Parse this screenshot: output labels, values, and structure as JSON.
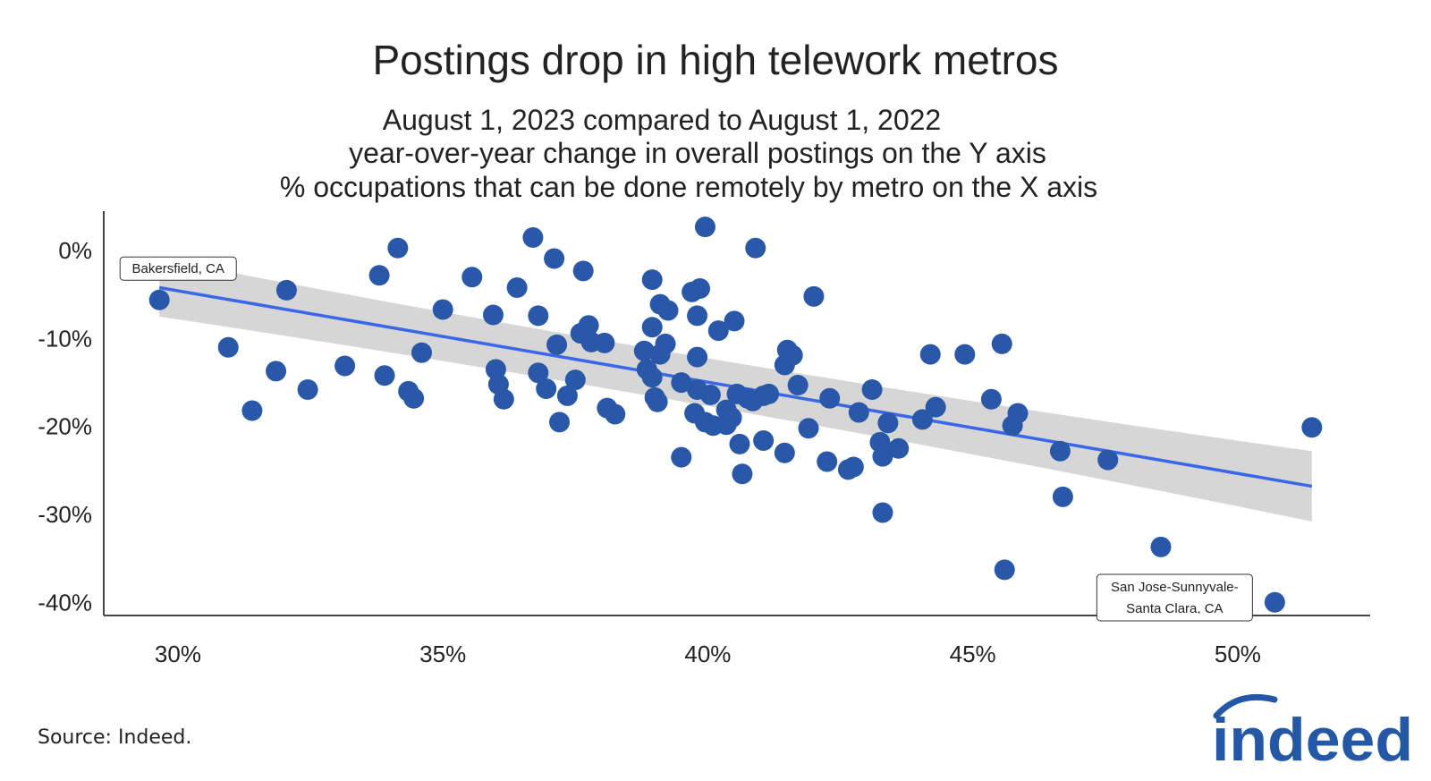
{
  "chart_data": {
    "type": "scatter",
    "title": "Postings drop in high telework metros",
    "subtitle_lines": [
      "August 1, 2023 compared to August 1, 2022",
      "year-over-year change in overall postings on the Y axis",
      "% occupations that can be done remotely by metro on the X axis"
    ],
    "xlabel": "",
    "ylabel": "",
    "xlim": [
      28.6,
      52.5
    ],
    "ylim": [
      -41.5,
      4.5
    ],
    "x_ticks": [
      30,
      35,
      40,
      45,
      50
    ],
    "x_tick_labels": [
      "30%",
      "35%",
      "40%",
      "45%",
      "50%"
    ],
    "y_ticks": [
      0,
      -10,
      -20,
      -30,
      -40
    ],
    "y_tick_labels": [
      "0%",
      "-10%",
      "-20%",
      "-30%",
      "-40%"
    ],
    "grid": false,
    "trend": {
      "x1": 29.65,
      "y1": -4.2,
      "x2": 51.4,
      "y2": -26.8,
      "band_half_width_start": 3.3,
      "band_half_width_end": 4.0
    },
    "annotations": [
      {
        "label": "Bakersfield, CA",
        "x": 29.65,
        "y": -5.6
      },
      {
        "label_lines": [
          "San Jose-Sunnyvale-",
          "Santa Clara, CA"
        ],
        "x": 50.7,
        "y": -40.0
      }
    ],
    "points": [
      [
        29.65,
        -5.6
      ],
      [
        30.95,
        -11.0
      ],
      [
        31.4,
        -18.2
      ],
      [
        31.85,
        -13.7
      ],
      [
        32.05,
        -4.5
      ],
      [
        32.45,
        -15.8
      ],
      [
        33.15,
        -13.1
      ],
      [
        33.8,
        -2.8
      ],
      [
        34.15,
        0.3
      ],
      [
        33.9,
        -14.2
      ],
      [
        34.35,
        -16.0
      ],
      [
        34.45,
        -16.8
      ],
      [
        34.6,
        -11.6
      ],
      [
        35.0,
        -6.7
      ],
      [
        35.55,
        -3.0
      ],
      [
        35.95,
        -7.3
      ],
      [
        36.0,
        -13.5
      ],
      [
        36.05,
        -15.2
      ],
      [
        36.15,
        -16.9
      ],
      [
        36.4,
        -4.2
      ],
      [
        36.7,
        1.5
      ],
      [
        36.8,
        -7.4
      ],
      [
        36.8,
        -13.9
      ],
      [
        36.95,
        -15.7
      ],
      [
        37.1,
        -0.9
      ],
      [
        37.15,
        -10.7
      ],
      [
        37.2,
        -19.5
      ],
      [
        37.35,
        -16.5
      ],
      [
        37.5,
        -14.7
      ],
      [
        37.6,
        -9.4
      ],
      [
        37.65,
        -2.3
      ],
      [
        37.75,
        -8.5
      ],
      [
        37.8,
        -10.4
      ],
      [
        38.05,
        -10.5
      ],
      [
        38.1,
        -17.9
      ],
      [
        38.25,
        -18.6
      ],
      [
        38.8,
        -11.4
      ],
      [
        38.85,
        -13.5
      ],
      [
        38.95,
        -3.3
      ],
      [
        38.95,
        -8.7
      ],
      [
        38.95,
        -14.4
      ],
      [
        39.0,
        -16.7
      ],
      [
        39.05,
        -17.2
      ],
      [
        39.1,
        -6.1
      ],
      [
        39.1,
        -11.8
      ],
      [
        39.2,
        -10.6
      ],
      [
        39.25,
        -6.8
      ],
      [
        39.5,
        -15.0
      ],
      [
        39.5,
        -23.5
      ],
      [
        39.7,
        -4.7
      ],
      [
        39.75,
        -18.5
      ],
      [
        39.8,
        -7.4
      ],
      [
        39.8,
        -12.1
      ],
      [
        39.8,
        -15.8
      ],
      [
        39.85,
        -4.3
      ],
      [
        39.95,
        -19.5
      ],
      [
        39.95,
        2.7
      ],
      [
        40.05,
        -16.4
      ],
      [
        40.1,
        -19.9
      ],
      [
        40.2,
        -9.1
      ],
      [
        40.35,
        -18.1
      ],
      [
        40.35,
        -19.8
      ],
      [
        40.45,
        -19.0
      ],
      [
        40.5,
        -8.0
      ],
      [
        40.55,
        -16.3
      ],
      [
        40.6,
        -22.0
      ],
      [
        40.65,
        -25.4
      ],
      [
        40.75,
        -16.8
      ],
      [
        40.85,
        -17.1
      ],
      [
        40.9,
        0.3
      ],
      [
        41.05,
        -21.6
      ],
      [
        41.05,
        -16.5
      ],
      [
        41.15,
        -16.3
      ],
      [
        41.45,
        -23.0
      ],
      [
        41.45,
        -13.0
      ],
      [
        41.5,
        -11.3
      ],
      [
        41.6,
        -11.9
      ],
      [
        41.7,
        -15.3
      ],
      [
        41.9,
        -20.2
      ],
      [
        42.0,
        -5.2
      ],
      [
        42.25,
        -24.0
      ],
      [
        42.3,
        -16.8
      ],
      [
        42.65,
        -24.9
      ],
      [
        42.75,
        -24.6
      ],
      [
        42.85,
        -18.4
      ],
      [
        43.1,
        -15.8
      ],
      [
        43.25,
        -21.8
      ],
      [
        43.3,
        -23.4
      ],
      [
        43.3,
        -29.8
      ],
      [
        43.4,
        -19.6
      ],
      [
        43.6,
        -22.5
      ],
      [
        44.05,
        -19.2
      ],
      [
        44.2,
        -11.8
      ],
      [
        44.3,
        -17.8
      ],
      [
        44.85,
        -11.8
      ],
      [
        45.35,
        -16.9
      ],
      [
        45.55,
        -10.6
      ],
      [
        45.6,
        -36.3
      ],
      [
        45.75,
        -19.9
      ],
      [
        45.85,
        -18.5
      ],
      [
        46.65,
        -22.8
      ],
      [
        46.7,
        -28.0
      ],
      [
        47.55,
        -23.8
      ],
      [
        48.55,
        -33.7
      ],
      [
        50.7,
        -40.0
      ],
      [
        51.4,
        -20.1
      ]
    ]
  },
  "source": "Source: Indeed.",
  "logo_text": "indeed",
  "colors": {
    "point": "#2a58a8",
    "trend": "#3a66ea",
    "band": "#d6d6d6",
    "logo": "#2557a7"
  }
}
